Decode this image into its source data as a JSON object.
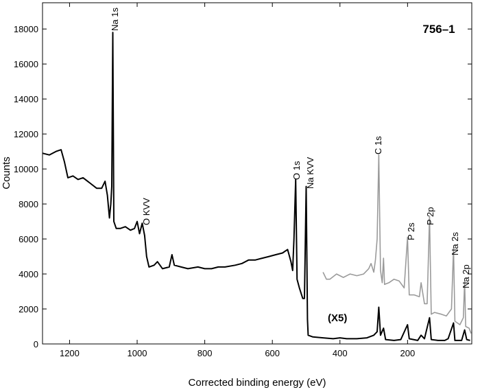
{
  "chart_data": {
    "type": "line",
    "title": "756–1",
    "xlabel": "Corrected binding energy (eV)",
    "ylabel": "Counts",
    "xlim": [
      1280,
      10
    ],
    "ylim": [
      0,
      19500
    ],
    "xticks": [
      1200,
      1000,
      800,
      600,
      400,
      200
    ],
    "yticks": [
      0,
      2000,
      4000,
      6000,
      8000,
      10000,
      12000,
      14000,
      16000,
      18000
    ],
    "grid": false,
    "series": [
      {
        "color": "#000000",
        "x": [
          1280,
          1260,
          1240,
          1225,
          1215,
          1205,
          1190,
          1175,
          1160,
          1140,
          1120,
          1105,
          1095,
          1088,
          1082,
          1078,
          1075,
          1072,
          1069,
          1062,
          1050,
          1035,
          1020,
          1008,
          1000,
          993,
          985,
          978,
          972,
          965,
          950,
          940,
          925,
          905,
          897,
          890,
          870,
          850,
          820,
          800,
          780,
          760,
          740,
          710,
          690,
          670,
          650,
          630,
          610,
          590,
          570,
          555,
          545,
          540,
          536,
          531,
          527,
          520,
          510,
          505,
          500,
          496,
          494,
          480,
          450,
          420,
          400,
          380,
          350,
          320,
          300,
          290,
          285,
          280,
          271,
          265,
          240,
          220,
          200,
          195,
          170,
          160,
          150,
          135,
          130,
          110,
          90,
          80,
          64,
          60,
          40,
          31,
          25,
          15
        ],
        "values": [
          10900,
          10800,
          11000,
          11100,
          10400,
          9500,
          9600,
          9400,
          9500,
          9200,
          8900,
          8900,
          9300,
          8500,
          7200,
          8000,
          9000,
          17800,
          7000,
          6600,
          6600,
          6700,
          6500,
          6600,
          7000,
          6300,
          6900,
          6200,
          5000,
          4400,
          4500,
          4700,
          4300,
          4400,
          5100,
          4500,
          4400,
          4300,
          4400,
          4300,
          4300,
          4400,
          4400,
          4500,
          4600,
          4800,
          4800,
          4900,
          5000,
          5100,
          5200,
          5400,
          4700,
          4200,
          6000,
          9400,
          3700,
          3200,
          2600,
          2600,
          9000,
          1400,
          500,
          400,
          350,
          300,
          350,
          300,
          300,
          350,
          500,
          700,
          2100,
          500,
          900,
          250,
          200,
          250,
          1100,
          300,
          200,
          500,
          300,
          1500,
          250,
          200,
          200,
          300,
          1200,
          200,
          200,
          800,
          250,
          200
        ]
      },
      {
        "color": "#9a9a9a",
        "x": [
          450,
          440,
          430,
          410,
          390,
          370,
          350,
          330,
          315,
          308,
          300,
          295,
          290,
          285,
          280,
          275,
          271,
          268,
          255,
          240,
          225,
          210,
          200,
          195,
          180,
          165,
          160,
          150,
          142,
          135,
          130,
          120,
          100,
          85,
          70,
          64,
          60,
          45,
          35,
          31,
          28,
          18,
          12
        ],
        "values": [
          4100,
          3700,
          3700,
          4000,
          3800,
          4000,
          3900,
          4000,
          4300,
          4600,
          4100,
          4800,
          6000,
          10800,
          4200,
          3500,
          4900,
          3400,
          3500,
          3700,
          3600,
          3200,
          6100,
          2800,
          2800,
          2700,
          3500,
          2300,
          2300,
          7300,
          1700,
          1800,
          1700,
          1600,
          2000,
          5500,
          1300,
          1100,
          1500,
          3600,
          1000,
          900,
          600
        ]
      }
    ],
    "annotations": [
      "Na 1s",
      "O KVV",
      "O 1s",
      "Na KVV",
      "C 1s",
      "P 2s",
      "P 2p",
      "Na 2s",
      "Na 2p",
      "(X5)"
    ]
  }
}
